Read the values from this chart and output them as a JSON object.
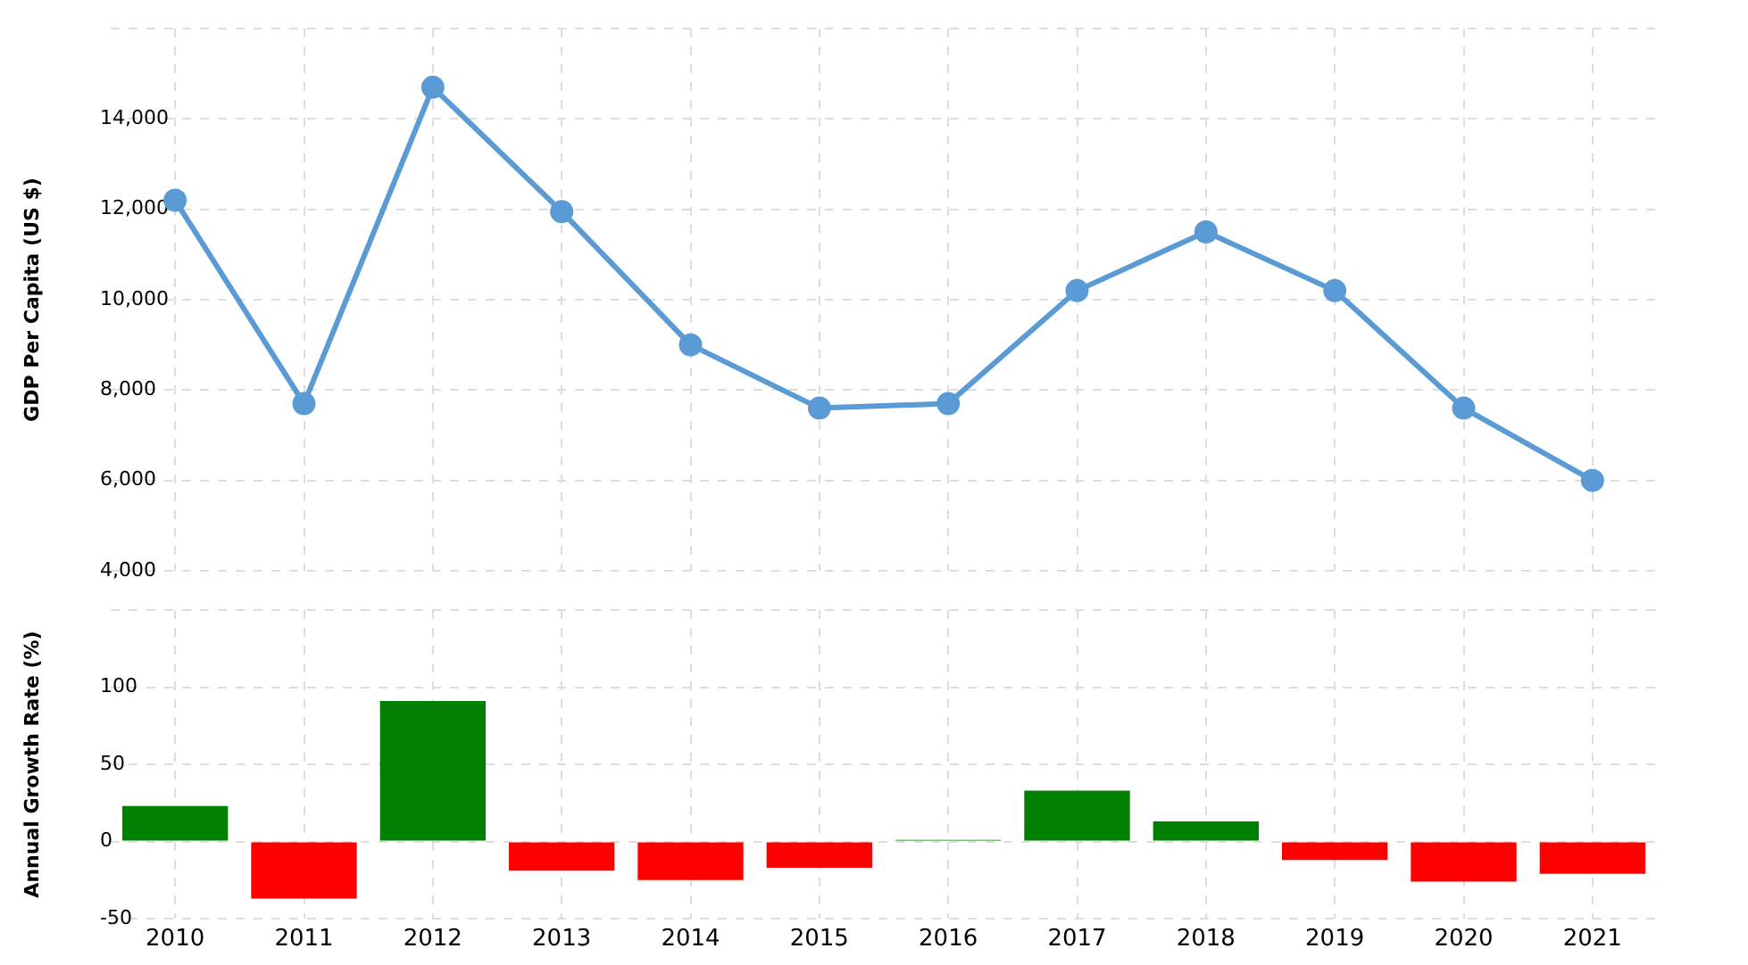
{
  "chart_data": [
    {
      "type": "line",
      "ylabel": "GDP Per Capita (US $)",
      "categories": [
        "2010",
        "2011",
        "2012",
        "2013",
        "2014",
        "2015",
        "2016",
        "2017",
        "2018",
        "2019",
        "2020",
        "2021"
      ],
      "series": [
        {
          "color": "#5b9bd5",
          "values": [
            12200,
            7700,
            14700,
            11950,
            9000,
            7600,
            7700,
            10200,
            11500,
            10200,
            7600,
            6000
          ]
        }
      ],
      "ylim": [
        4000,
        16000
      ],
      "yticks": [
        {
          "value": 4000,
          "label": "4,000"
        },
        {
          "value": 6000,
          "label": "6,000"
        },
        {
          "value": 8000,
          "label": "8,000"
        },
        {
          "value": 10000,
          "label": "10,000"
        },
        {
          "value": 12000,
          "label": "12,000"
        },
        {
          "value": 14000,
          "label": "14,000"
        },
        {
          "value": 16000,
          "label": null
        }
      ],
      "grid": true,
      "marker": "circle",
      "tick_labels": "y"
    },
    {
      "type": "bar",
      "ylabel": "Annual Growth Rate (%)",
      "categories": [
        "2010",
        "2011",
        "2012",
        "2013",
        "2014",
        "2015",
        "2016",
        "2017",
        "2018",
        "2019",
        "2020",
        "2021"
      ],
      "values": [
        23,
        -37,
        91,
        -19,
        -25,
        -17,
        1,
        33,
        13,
        -12,
        -26,
        -21
      ],
      "colors": [
        "#008000",
        "#ff0000",
        "#008000",
        "#ff0000",
        "#ff0000",
        "#ff0000",
        "#008000",
        "#008000",
        "#008000",
        "#ff0000",
        "#ff0000",
        "#ff0000"
      ],
      "ylim": [
        -50,
        150
      ],
      "yticks": [
        -50,
        0,
        50,
        100,
        {
          "value": 150,
          "label": null
        }
      ],
      "grid": true
    }
  ]
}
